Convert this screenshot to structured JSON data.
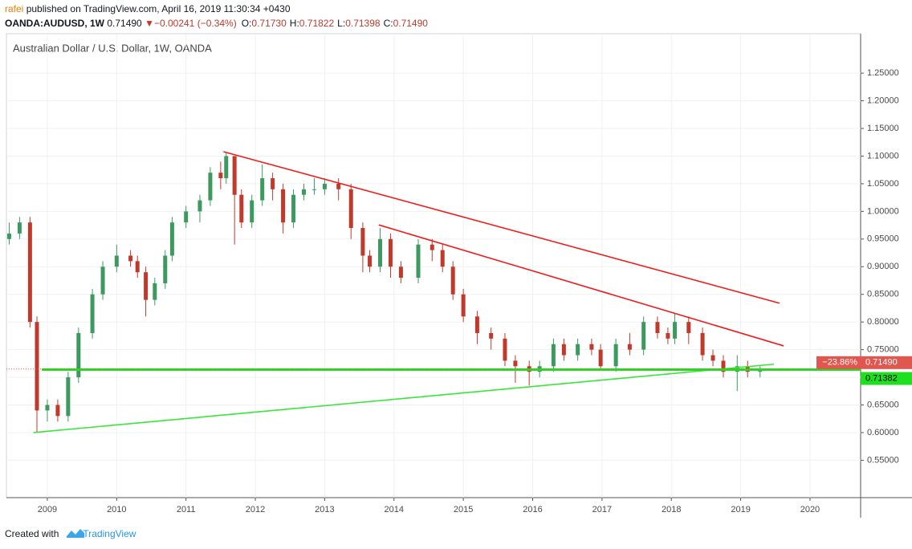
{
  "header": {
    "author": "rafei",
    "published": "published on TradingView.com, April 16, 2019 11:30:34 +0430",
    "symbol": "OANDA:AUDUSD, 1W",
    "last": "0.71490",
    "direction": "▼",
    "change": "−0.00241 (−0.34%)",
    "ohlc": [
      {
        "key": "O:",
        "value": "0.71730"
      },
      {
        "key": "H:",
        "value": "0.71822"
      },
      {
        "key": "L:",
        "value": "0.71398"
      },
      {
        "key": "C:",
        "value": "0.71490"
      }
    ]
  },
  "footer": {
    "text": "Created with",
    "brand": "TradingView"
  },
  "chart_data": {
    "type": "candlestick",
    "title": "Australian Dollar / U.S. Dollar, 1W, OANDA",
    "up_color": "#3c9a5f",
    "down_color": "#c0392b",
    "grid": true,
    "x": [
      2008.45,
      2008.6,
      2008.75,
      2008.85,
      2009.0,
      2009.15,
      2009.3,
      2009.45,
      2009.65,
      2009.8,
      2010.0,
      2010.2,
      2010.3,
      2010.42,
      2010.55,
      2010.7,
      2010.8,
      2011.0,
      2011.2,
      2011.35,
      2011.5,
      2011.58,
      2011.7,
      2011.8,
      2011.95,
      2012.1,
      2012.25,
      2012.4,
      2012.55,
      2012.7,
      2012.85,
      2013.0,
      2013.2,
      2013.38,
      2013.55,
      2013.65,
      2013.8,
      2013.95,
      2014.1,
      2014.35,
      2014.55,
      2014.7,
      2014.85,
      2015.0,
      2015.2,
      2015.4,
      2015.6,
      2015.75,
      2015.95,
      2016.1,
      2016.3,
      2016.45,
      2016.65,
      2016.85,
      2016.98,
      2017.2,
      2017.4,
      2017.6,
      2017.8,
      2017.95,
      2018.05,
      2018.25,
      2018.45,
      2018.6,
      2018.75,
      2018.95,
      2019.1,
      2019.28
    ],
    "open": [
      0.95,
      0.96,
      0.98,
      0.8,
      0.64,
      0.65,
      0.63,
      0.7,
      0.78,
      0.85,
      0.9,
      0.92,
      0.91,
      0.89,
      0.84,
      0.87,
      0.92,
      0.98,
      1.0,
      1.02,
      1.07,
      1.06,
      1.1,
      1.03,
      0.98,
      1.02,
      1.06,
      1.04,
      0.98,
      1.03,
      1.04,
      1.04,
      1.05,
      1.04,
      0.97,
      0.92,
      0.9,
      0.95,
      0.9,
      0.88,
      0.94,
      0.93,
      0.9,
      0.85,
      0.81,
      0.78,
      0.77,
      0.73,
      0.72,
      0.71,
      0.72,
      0.76,
      0.74,
      0.76,
      0.75,
      0.72,
      0.76,
      0.75,
      0.8,
      0.78,
      0.77,
      0.8,
      0.78,
      0.74,
      0.73,
      0.71,
      0.72,
      0.71
    ],
    "high": [
      0.98,
      0.99,
      0.99,
      0.81,
      0.66,
      0.66,
      0.71,
      0.79,
      0.86,
      0.91,
      0.94,
      0.93,
      0.92,
      0.9,
      0.88,
      0.93,
      0.99,
      1.01,
      1.03,
      1.08,
      1.09,
      1.107,
      1.1,
      1.04,
      1.03,
      1.085,
      1.07,
      1.05,
      1.04,
      1.05,
      1.06,
      1.06,
      1.06,
      1.05,
      0.98,
      0.93,
      0.97,
      0.96,
      0.91,
      0.95,
      0.95,
      0.94,
      0.91,
      0.86,
      0.82,
      0.79,
      0.78,
      0.74,
      0.73,
      0.73,
      0.77,
      0.77,
      0.77,
      0.77,
      0.76,
      0.77,
      0.78,
      0.81,
      0.81,
      0.79,
      0.815,
      0.81,
      0.79,
      0.75,
      0.74,
      0.74,
      0.73,
      0.72
    ],
    "low": [
      0.94,
      0.95,
      0.79,
      0.6,
      0.62,
      0.62,
      0.62,
      0.69,
      0.77,
      0.84,
      0.89,
      0.9,
      0.88,
      0.81,
      0.83,
      0.86,
      0.91,
      0.97,
      0.98,
      1.01,
      1.04,
      1.05,
      0.94,
      0.97,
      0.97,
      1.01,
      1.02,
      0.96,
      0.97,
      1.02,
      1.03,
      1.03,
      1.02,
      0.95,
      0.89,
      0.89,
      0.89,
      0.88,
      0.87,
      0.87,
      0.91,
      0.89,
      0.84,
      0.8,
      0.76,
      0.75,
      0.72,
      0.69,
      0.685,
      0.7,
      0.71,
      0.73,
      0.73,
      0.74,
      0.715,
      0.71,
      0.74,
      0.74,
      0.77,
      0.76,
      0.76,
      0.76,
      0.73,
      0.72,
      0.7,
      0.675,
      0.7,
      0.7
    ],
    "close": [
      0.96,
      0.98,
      0.8,
      0.64,
      0.65,
      0.63,
      0.7,
      0.78,
      0.85,
      0.9,
      0.92,
      0.91,
      0.89,
      0.84,
      0.87,
      0.92,
      0.98,
      1.0,
      1.02,
      1.07,
      1.06,
      1.1,
      1.03,
      0.98,
      1.02,
      1.06,
      1.04,
      0.98,
      1.03,
      1.04,
      1.04,
      1.05,
      1.04,
      0.97,
      0.92,
      0.9,
      0.95,
      0.9,
      0.88,
      0.94,
      0.93,
      0.9,
      0.85,
      0.81,
      0.78,
      0.77,
      0.73,
      0.72,
      0.71,
      0.72,
      0.76,
      0.74,
      0.76,
      0.75,
      0.72,
      0.76,
      0.75,
      0.8,
      0.78,
      0.77,
      0.8,
      0.78,
      0.74,
      0.73,
      0.71,
      0.72,
      0.71,
      0.7149
    ],
    "trend_lines": [
      {
        "color": "#f21b1b",
        "x": [
          2011.54,
          2019.56
        ],
        "y": [
          1.108,
          0.834
        ]
      },
      {
        "color": "#f21b1b",
        "x": [
          2013.78,
          2019.62
        ],
        "y": [
          0.9756,
          0.7568
        ]
      },
      {
        "color": "#39e639",
        "x": [
          2008.8,
          2019.48
        ],
        "y": [
          0.6,
          0.7237
        ]
      }
    ],
    "price_lines": [
      {
        "value": 0.71382,
        "label": "0.71382",
        "x": 2008.92,
        "color": "#1ee01e"
      },
      {
        "value": 0.7149,
        "label": "0.71490",
        "change_label": "−23.86%",
        "color": "#e0574f"
      }
    ],
    "xlim": [
      2008.41,
      2020.73
    ],
    "ylim": [
      0.4824,
      1.3213
    ],
    "xticks": [
      2009,
      2010,
      2011,
      2012,
      2013,
      2014,
      2015,
      2016,
      2017,
      2018,
      2019,
      2020
    ],
    "yticks": [
      {
        "value": 0.55,
        "label": "0.55000"
      },
      {
        "value": 0.6,
        "label": "0.60000"
      },
      {
        "value": 0.65,
        "label": "0.65000"
      },
      {
        "value": 0.7,
        "label": "0.70000"
      },
      {
        "value": 0.75,
        "label": "0.75000"
      },
      {
        "value": 0.8,
        "label": "0.80000"
      },
      {
        "value": 0.85,
        "label": "0.85000"
      },
      {
        "value": 0.9,
        "label": "0.90000"
      },
      {
        "value": 0.95,
        "label": "0.95000"
      },
      {
        "value": 1.0,
        "label": "1.00000"
      },
      {
        "value": 1.05,
        "label": "1.05000"
      },
      {
        "value": 1.1,
        "label": "1.10000"
      },
      {
        "value": 1.15,
        "label": "1.15000"
      },
      {
        "value": 1.2,
        "label": "1.20000"
      },
      {
        "value": 1.25,
        "label": "1.25000"
      }
    ]
  }
}
